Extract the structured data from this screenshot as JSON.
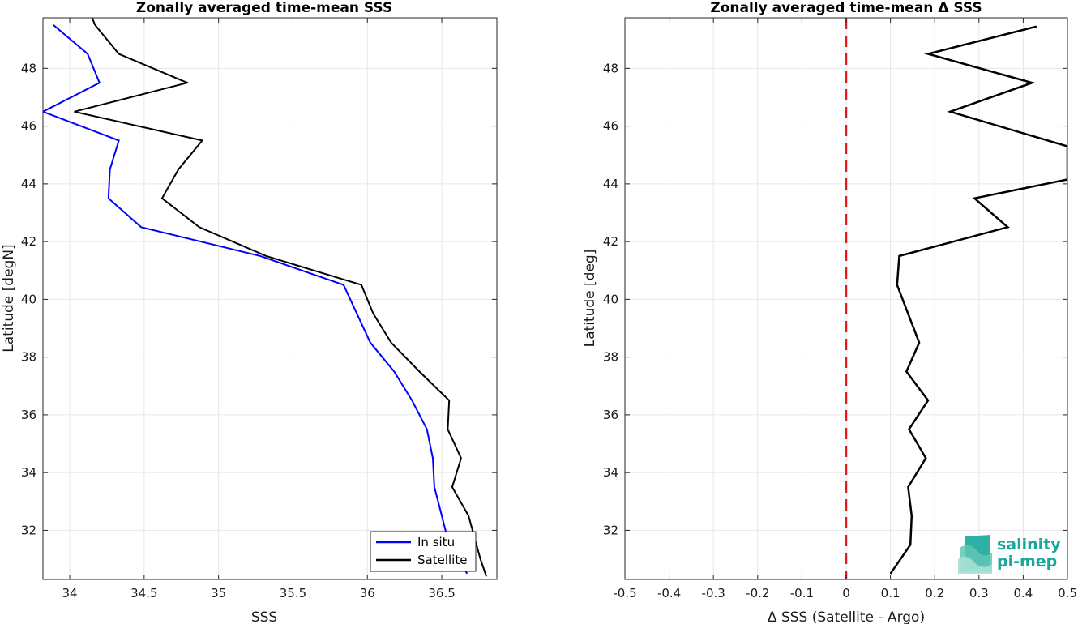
{
  "chart_data": [
    {
      "type": "line",
      "title": "Zonally averaged time-mean SSS",
      "xlabel": "SSS",
      "ylabel": "Latitude [degN]",
      "xlim": [
        33.82,
        36.87
      ],
      "ylim": [
        30.3,
        49.75
      ],
      "xticks": [
        34,
        34.5,
        35,
        35.5,
        36,
        36.5
      ],
      "xtick_labels": [
        "34",
        "34.5",
        "35",
        "35.5",
        "36",
        "36.5"
      ],
      "yticks": [
        32,
        34,
        36,
        38,
        40,
        42,
        44,
        46,
        48
      ],
      "ytick_labels": [
        "32",
        "34",
        "36",
        "38",
        "40",
        "42",
        "44",
        "46",
        "48"
      ],
      "grid": true,
      "legend": "bottom-right",
      "series": [
        {
          "name": "In situ",
          "color": "#0000ff",
          "x": [
            36.67,
            36.55,
            36.5,
            36.45,
            36.44,
            36.4,
            36.3,
            36.18,
            36.02,
            35.84,
            35.28,
            34.48,
            34.26,
            34.27,
            34.33,
            33.82,
            34.2,
            34.12,
            33.89
          ],
          "y": [
            30.5,
            31.5,
            32.5,
            33.5,
            34.5,
            35.5,
            36.5,
            37.5,
            38.5,
            40.5,
            41.5,
            42.5,
            43.5,
            44.5,
            45.5,
            46.5,
            47.5,
            48.5,
            49.5
          ]
        },
        {
          "name": "Satellite",
          "color": "#000000",
          "x": [
            36.8,
            36.76,
            36.68,
            36.57,
            36.63,
            36.54,
            36.55,
            36.35,
            36.16,
            36.04,
            35.96,
            35.32,
            34.87,
            34.62,
            34.73,
            34.89,
            34.03,
            34.79,
            34.33,
            34.17,
            34.15
          ],
          "y": [
            30.4,
            31,
            32.5,
            33.5,
            34.5,
            35.5,
            36.5,
            37.5,
            38.5,
            39.5,
            40.5,
            41.5,
            42.5,
            43.5,
            44.5,
            45.5,
            46.5,
            47.5,
            48.5,
            49.5,
            49.75
          ]
        }
      ]
    },
    {
      "type": "line",
      "title": "Zonally averaged time-mean Δ SSS",
      "xlabel": "Δ SSS (Satellite - Argo)",
      "ylabel": "Latitude [deg]",
      "xlim": [
        -0.5,
        0.5
      ],
      "ylim": [
        30.3,
        49.75
      ],
      "xticks": [
        -0.5,
        -0.4,
        -0.3,
        -0.2,
        -0.1,
        0,
        0.1,
        0.2,
        0.3,
        0.4,
        0.5
      ],
      "xtick_labels": [
        "-0.5",
        "-0.4",
        "-0.3",
        "-0.2",
        "-0.1",
        "0",
        "0.1",
        "0.2",
        "0.3",
        "0.4",
        "0.5"
      ],
      "yticks": [
        32,
        34,
        36,
        38,
        40,
        42,
        44,
        46,
        48
      ],
      "ytick_labels": [
        "32",
        "34",
        "36",
        "38",
        "40",
        "42",
        "44",
        "46",
        "48"
      ],
      "grid": true,
      "reference_line": {
        "x": 0,
        "color": "#e41a1c",
        "style": "dashed"
      },
      "series": [
        {
          "color": "#000000",
          "x": [
            0.1,
            0.145,
            0.148,
            0.14,
            0.18,
            0.142,
            0.185,
            0.136,
            0.165,
            0.14,
            0.115,
            0.12,
            0.365,
            0.29,
            0.5,
            0.5,
            0.235,
            0.42,
            0.185,
            0.43
          ],
          "y": [
            30.5,
            31.5,
            32.5,
            33.5,
            34.5,
            35.5,
            36.5,
            37.5,
            38.5,
            39.5,
            40.5,
            41.5,
            42.5,
            43.5,
            44.15,
            45.3,
            46.5,
            47.5,
            48.5,
            49.45
          ]
        }
      ]
    }
  ],
  "logo": {
    "line1": "salinity",
    "line2": "pi-mep",
    "colors": [
      "#18a79a",
      "#5fc7b5",
      "#a6e0d3"
    ]
  }
}
